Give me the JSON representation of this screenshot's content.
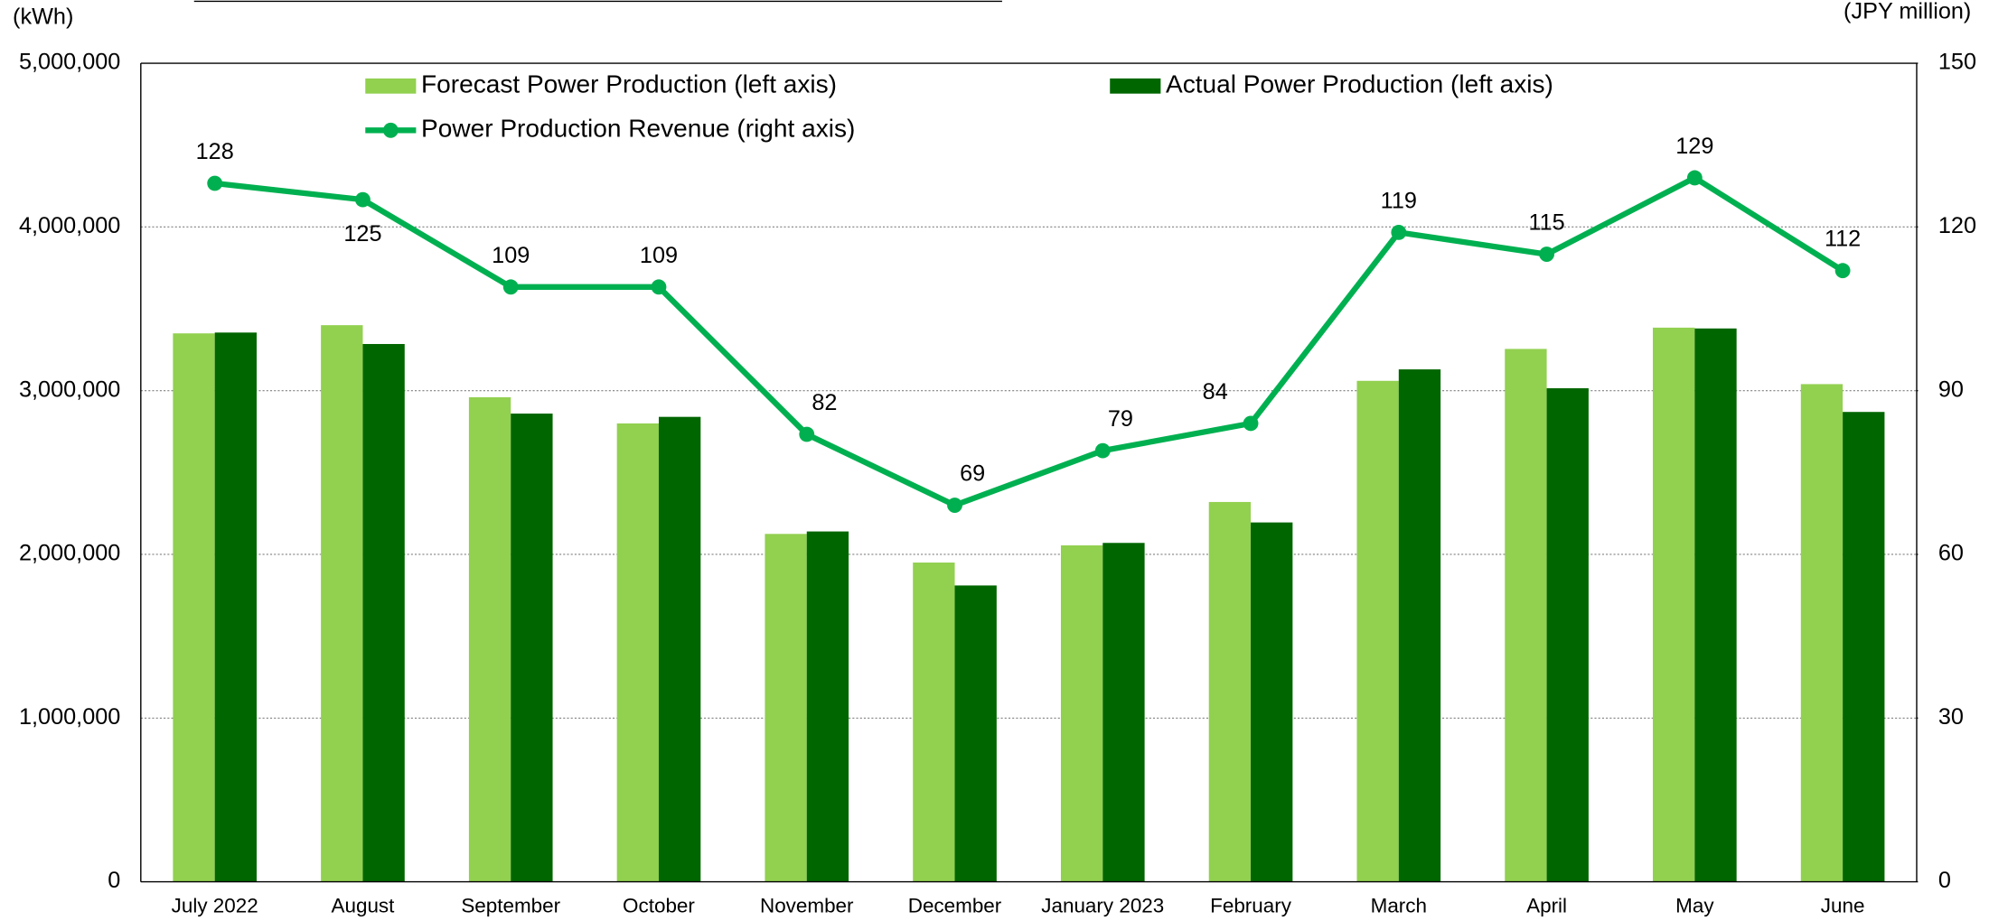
{
  "chart_data": {
    "type": "bar",
    "categories": [
      "July 2022",
      "August",
      "September",
      "October",
      "November",
      "December",
      "January 2023",
      "February",
      "March",
      "April",
      "May",
      "June"
    ],
    "y_label": "(kWh)",
    "y2_label": "(JPY million)",
    "series": [
      {
        "name": "Forecast Power Production (left axis)",
        "type": "bar",
        "color": "#92d050",
        "values": [
          3350000,
          3400000,
          2960000,
          2800000,
          2125000,
          1950000,
          2055000,
          2320000,
          3060000,
          3255000,
          3385000,
          3040000
        ]
      },
      {
        "name": "Actual Power Production (left axis)",
        "type": "bar",
        "color": "#006600",
        "values": [
          3355000,
          3285000,
          2860000,
          2840000,
          2140000,
          1810000,
          2070000,
          2195000,
          3130000,
          3015000,
          3380000,
          2870000
        ]
      },
      {
        "name": "Power Production Revenue (right axis)",
        "type": "line",
        "axis": "y2",
        "color": "#00b050",
        "values": [
          128,
          125,
          109,
          109,
          82,
          69,
          79,
          84,
          119,
          115,
          129,
          112
        ]
      }
    ],
    "ylim": [
      0,
      5000000
    ],
    "yticks": [
      0,
      {
        "value": 1000000,
        "label": "1,000,000"
      },
      {
        "value": 2000000,
        "label": "2,000,000"
      },
      {
        "value": 3000000,
        "label": "3,000,000"
      },
      {
        "value": 4000000,
        "label": "4,000,000"
      },
      {
        "value": 5000000,
        "label": "5,000,000"
      }
    ],
    "y2lim": [
      0,
      150
    ],
    "y2ticks": [
      0,
      30,
      60,
      90,
      120,
      150
    ],
    "grid": true
  }
}
